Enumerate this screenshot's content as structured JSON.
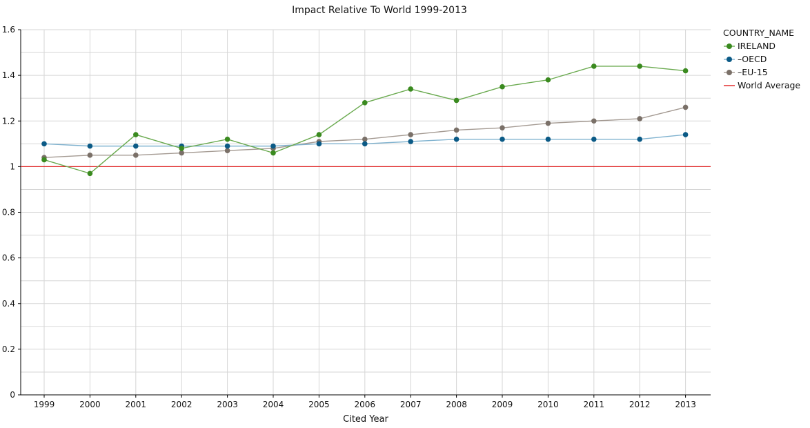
{
  "chart_data": {
    "type": "line",
    "title": "Impact Relative To World 1999-2013",
    "xlabel": "Cited Year",
    "ylabel": "",
    "ylim": [
      0,
      1.6
    ],
    "yticks": [
      "0",
      "0.2",
      "0.4",
      "0.6",
      "0.8",
      "1",
      "1.2",
      "1.4",
      "1.6"
    ],
    "categories": [
      "1999",
      "2000",
      "2001",
      "2002",
      "2003",
      "2004",
      "2005",
      "2006",
      "2007",
      "2008",
      "2009",
      "2010",
      "2011",
      "2012",
      "2013"
    ],
    "grid": true,
    "legend_position": "right",
    "legend_title": "COUNTRY_NAME",
    "series": [
      {
        "name": "IRELAND",
        "color": "#3a8a1f",
        "line_color": "#6aaa4f",
        "values": [
          1.03,
          0.97,
          1.14,
          1.08,
          1.12,
          1.06,
          1.14,
          1.28,
          1.34,
          1.29,
          1.35,
          1.38,
          1.44,
          1.44,
          1.42
        ]
      },
      {
        "name": "OECD",
        "legend_label": "–OECD",
        "color": "#0b5a86",
        "line_color": "#7fb2cf",
        "values": [
          1.1,
          1.09,
          1.09,
          1.09,
          1.09,
          1.09,
          1.1,
          1.1,
          1.11,
          1.12,
          1.12,
          1.12,
          1.12,
          1.12,
          1.14
        ]
      },
      {
        "name": "EU-15",
        "legend_label": "–EU-15",
        "color": "#7a7068",
        "line_color": "#a49a92",
        "values": [
          1.04,
          1.05,
          1.05,
          1.06,
          1.07,
          1.08,
          1.11,
          1.12,
          1.14,
          1.16,
          1.17,
          1.19,
          1.2,
          1.21,
          1.26
        ]
      }
    ],
    "reference_line": {
      "name": "World Average",
      "value": 1.0,
      "color": "#e02020"
    }
  }
}
